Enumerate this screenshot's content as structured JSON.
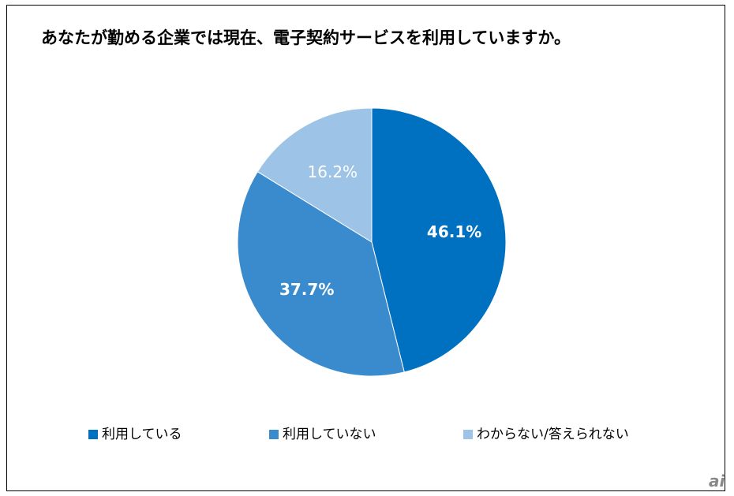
{
  "chart_data": {
    "type": "pie",
    "title": "あなたが勤める企業では現在、電子契約サービスを利用していますか。",
    "categories": [
      "利用している",
      "利用していない",
      "わからない/答えられない"
    ],
    "values": [
      46.1,
      37.7,
      16.2
    ],
    "labels": [
      "46.1%",
      "37.7%",
      "16.2%"
    ],
    "colors": [
      "#0070C0",
      "#3A8BCD",
      "#9DC3E6"
    ],
    "label_colors": [
      "#FFFFFF",
      "#FFFFFF",
      "#FFFFFF"
    ],
    "legend_position": "bottom"
  },
  "watermark": "ai"
}
